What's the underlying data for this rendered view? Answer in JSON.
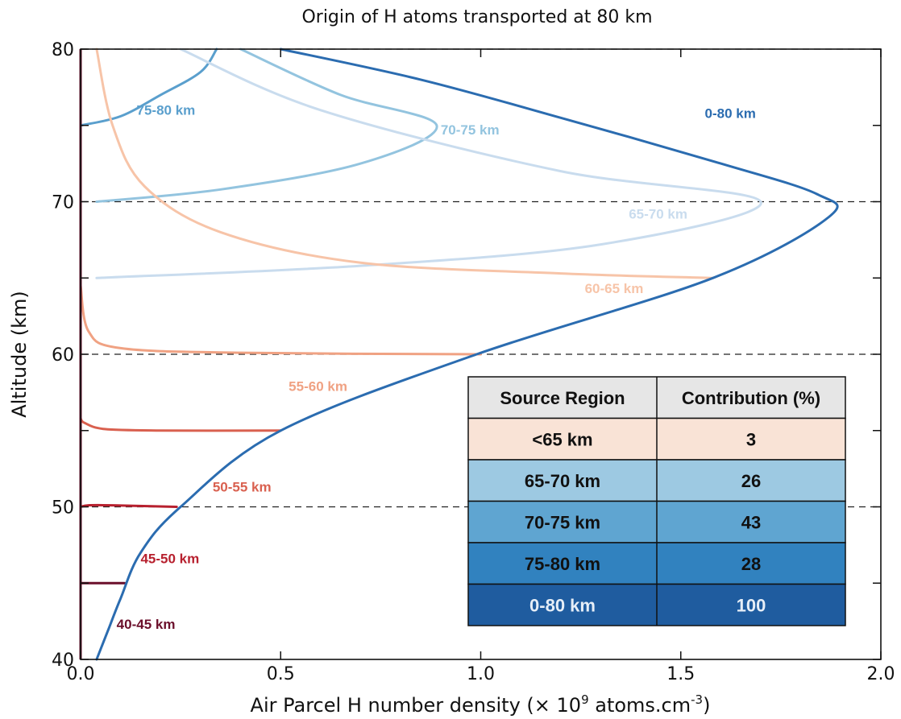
{
  "chart_data": {
    "type": "line",
    "title": "Origin of H atoms transported at 80 km",
    "xlabel": "Air Parcel H number density (× 10",
    "xlabel_sup": "9",
    "xlabel_mid": " atoms.cm",
    "xlabel_sup2": "-3",
    "xlabel_end": ")",
    "ylabel": "Altitude (km)",
    "xlim": [
      0,
      2.0
    ],
    "ylim": [
      40,
      80
    ],
    "xticks": [
      "0.0",
      "0.5",
      "1.0",
      "1.5",
      "2.0"
    ],
    "yticks": [
      "40",
      "50",
      "60",
      "70",
      "80"
    ],
    "xtick_values": [
      0,
      0.5,
      1.0,
      1.5,
      2.0
    ],
    "ytick_values": [
      40,
      50,
      60,
      70,
      80
    ],
    "dashed_reference_altitudes": [
      50,
      60,
      70,
      80
    ],
    "series": [
      {
        "label": "0-80  km",
        "color": "#2b6cb0",
        "points": [
          [
            0.04,
            40
          ],
          [
            0.07,
            42
          ],
          [
            0.1,
            44
          ],
          [
            0.15,
            47
          ],
          [
            0.25,
            50
          ],
          [
            0.5,
            55
          ],
          [
            0.99,
            60
          ],
          [
            1.58,
            65
          ],
          [
            1.87,
            69
          ],
          [
            1.84,
            70.5
          ],
          [
            1.6,
            72.5
          ],
          [
            1.2,
            75.5
          ],
          [
            0.85,
            78
          ],
          [
            0.5,
            80
          ]
        ]
      },
      {
        "label": "40-45 km",
        "color": "#6b0f2b",
        "points": [
          [
            0.0,
            45
          ],
          [
            0.02,
            45
          ],
          [
            0.11,
            45
          ]
        ]
      },
      {
        "label": "45-50 km",
        "color": "#b7202e",
        "points": [
          [
            0.0,
            50
          ],
          [
            0.02,
            50.1
          ],
          [
            0.08,
            50.1
          ],
          [
            0.24,
            50
          ]
        ]
      },
      {
        "label": "50-55 km",
        "color": "#d9604f",
        "points": [
          [
            0.0,
            55.8
          ],
          [
            0.01,
            55.5
          ],
          [
            0.06,
            55.1
          ],
          [
            0.2,
            55
          ],
          [
            0.5,
            55
          ]
        ]
      },
      {
        "label": "55-60 km",
        "color": "#f0a283",
        "points": [
          [
            0.0,
            64.5
          ],
          [
            0.02,
            61.5
          ],
          [
            0.1,
            60.4
          ],
          [
            0.4,
            60.1
          ],
          [
            1.0,
            60
          ]
        ]
      },
      {
        "label": "60-65 km",
        "color": "#f7c4a8",
        "points": [
          [
            0.04,
            80
          ],
          [
            0.08,
            75
          ],
          [
            0.16,
            71
          ],
          [
            0.35,
            68
          ],
          [
            0.7,
            66
          ],
          [
            1.2,
            65.3
          ],
          [
            1.58,
            65
          ]
        ]
      },
      {
        "label": "65-70 km",
        "color": "#c9dcee",
        "points": [
          [
            0.25,
            80
          ],
          [
            0.6,
            76
          ],
          [
            1.2,
            72
          ],
          [
            1.7,
            70
          ],
          [
            1.3,
            67.2
          ],
          [
            0.7,
            65.8
          ],
          [
            0.04,
            65
          ]
        ]
      },
      {
        "label": "70-75 km",
        "color": "#93c4df",
        "points": [
          [
            0.4,
            80
          ],
          [
            0.65,
            77
          ],
          [
            0.89,
            75
          ],
          [
            0.7,
            72.5
          ],
          [
            0.35,
            70.8
          ],
          [
            0.04,
            70
          ]
        ]
      },
      {
        "label": "75-80 km",
        "color": "#5a9fcd",
        "points": [
          [
            0.34,
            80
          ],
          [
            0.3,
            78.5
          ],
          [
            0.2,
            77
          ],
          [
            0.1,
            75.6
          ],
          [
            0.0,
            75
          ]
        ]
      }
    ],
    "curve_labels": [
      {
        "text": "0-80  km",
        "x": 1.56,
        "y": 75.5,
        "color": "#2b6cb0"
      },
      {
        "text": "75-80  km",
        "x": 0.14,
        "y": 75.7,
        "color": "#5a9fcd"
      },
      {
        "text": "70-75  km",
        "x": 0.9,
        "y": 74.4,
        "color": "#93c4df"
      },
      {
        "text": "65-70  km",
        "x": 1.37,
        "y": 68.9,
        "color": "#c9dcee"
      },
      {
        "text": "60-65  km",
        "x": 1.26,
        "y": 64.0,
        "color": "#f7c4a8"
      },
      {
        "text": "55-60  km",
        "x": 0.52,
        "y": 57.6,
        "color": "#f0a283"
      },
      {
        "text": "50-55 km",
        "x": 0.33,
        "y": 51.0,
        "color": "#d9604f"
      },
      {
        "text": "45-50 km",
        "x": 0.15,
        "y": 46.3,
        "color": "#b7202e"
      },
      {
        "text": "40-45 km",
        "x": 0.09,
        "y": 42.0,
        "color": "#6b0f2b"
      }
    ],
    "table": {
      "headers": [
        "Source Region",
        "Contribution (%)"
      ],
      "rows": [
        {
          "region": "<65 km",
          "contribution": "3",
          "bg": "#f9e3d6",
          "text_color": "#111111"
        },
        {
          "region": "65-70 km",
          "contribution": "26",
          "bg": "#9dc9e2",
          "text_color": "#111111"
        },
        {
          "region": "70-75 km",
          "contribution": "43",
          "bg": "#5fa5d1",
          "text_color": "#111111"
        },
        {
          "region": "75-80 km",
          "contribution": "28",
          "bg": "#3182bf",
          "text_color": "#111111"
        },
        {
          "region": "0-80 km",
          "contribution": "100",
          "bg": "#1f5c9f",
          "text_color": "#e6eef7"
        }
      ],
      "header_bg": "#e6e6e6"
    }
  }
}
